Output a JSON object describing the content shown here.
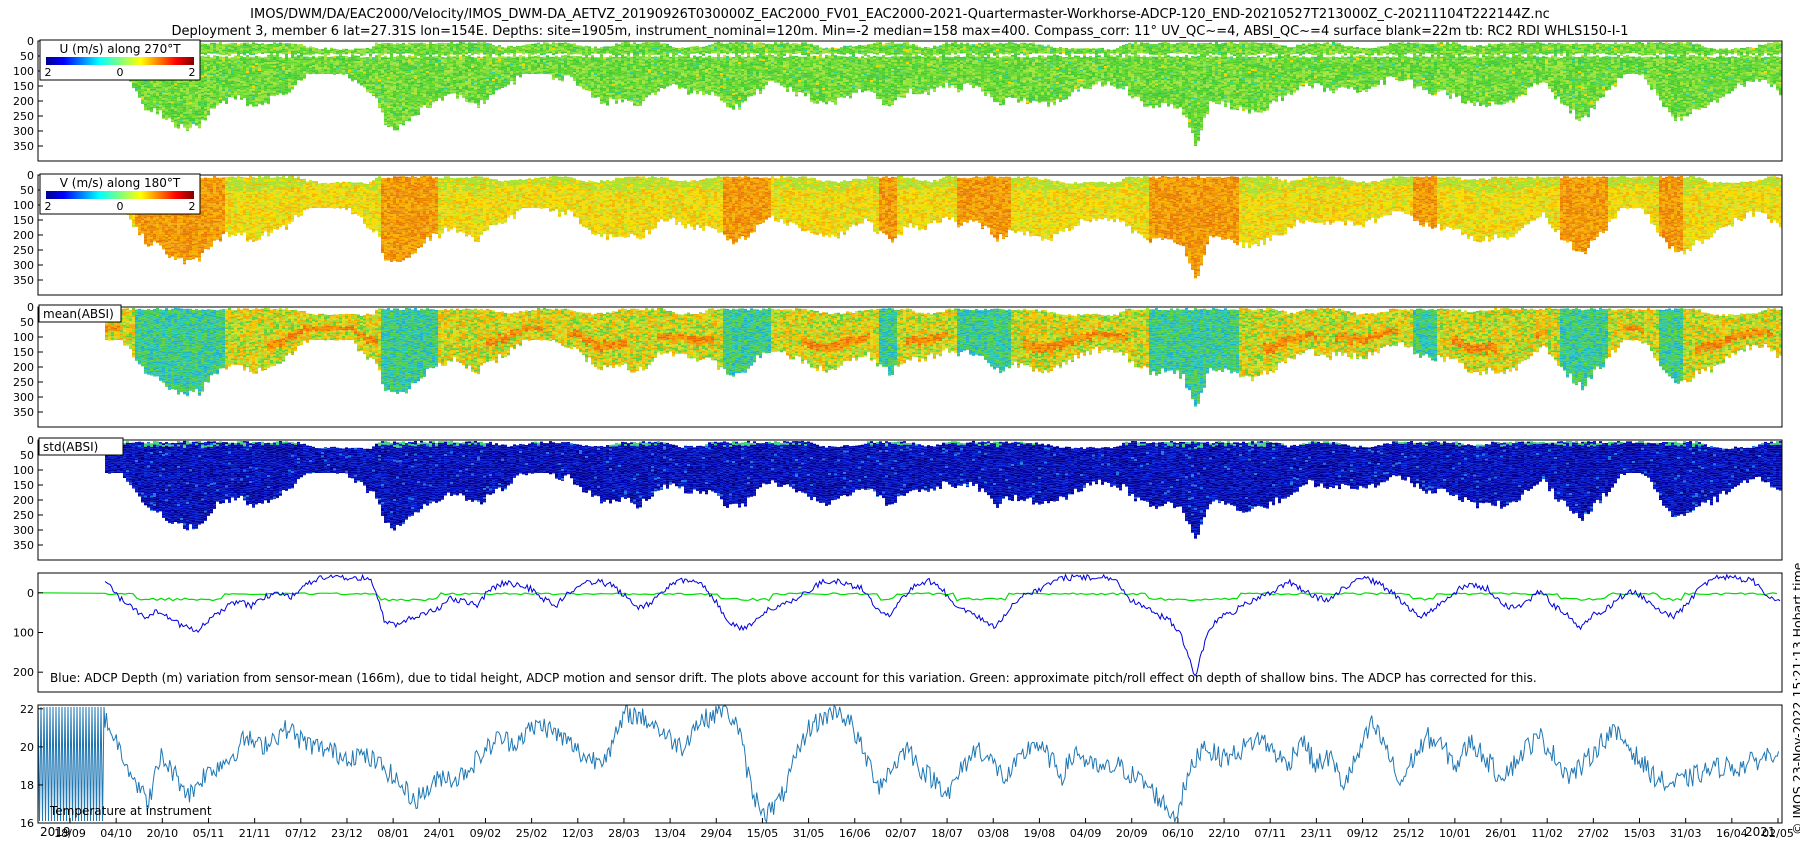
{
  "title_line1": "IMOS/DWM/DA/EAC2000/Velocity/IMOS_DWM-DA_AETVZ_20190926T030000Z_EAC2000_FV01_EAC2000-2021-Quartermaster-Workhorse-ADCP-120_END-20210527T213000Z_C-20211104T222144Z.nc",
  "title_line2": "Deployment 3, member 6 lat=27.31S lon=154E. Depths: site=1905m, instrument_nominal=120m. Min=-2 median=158 max=400. Compass_corr: 11° UV_QC~=4, ABSI_QC~=4 surface blank=22m tb: RC2 RDI WHLS150-I-1",
  "credit": "© IMOS 23-Nov-2022 15:21:13 Hobart time",
  "colors": {
    "blue_line": "#0000dd",
    "green_line": "#00dd00",
    "temp_line": "#1f77b4",
    "axis": "#000000"
  },
  "chart_data": [
    {
      "type": "heatmap",
      "panel": "u_velocity",
      "label": "U (m/s) along 270°T",
      "colorbar_ticks": [
        "2",
        "0",
        "2"
      ],
      "y_ticks": [
        "0",
        "50",
        "100",
        "150",
        "200",
        "250",
        "300",
        "350"
      ],
      "ylim": [
        0,
        400
      ],
      "colormap": "jet",
      "dominant_color": "green"
    },
    {
      "type": "heatmap",
      "panel": "v_velocity",
      "label": "V (m/s) along 180°T",
      "colorbar_ticks": [
        "2",
        "0",
        "2"
      ],
      "y_ticks": [
        "0",
        "50",
        "100",
        "150",
        "200",
        "250",
        "300",
        "350"
      ],
      "ylim": [
        0,
        400
      ],
      "colormap": "jet",
      "dominant_color": "orange-yellow"
    },
    {
      "type": "heatmap",
      "panel": "mean_absi",
      "label": "mean(ABSI)",
      "y_ticks": [
        "0",
        "50",
        "100",
        "150",
        "200",
        "250",
        "300",
        "350"
      ],
      "ylim": [
        0,
        400
      ],
      "colormap": "jet"
    },
    {
      "type": "heatmap",
      "panel": "std_absi",
      "label": "std(ABSI)",
      "y_ticks": [
        "0",
        "50",
        "100",
        "150",
        "200",
        "250",
        "300",
        "350"
      ],
      "ylim": [
        0,
        400
      ],
      "colormap": "jet",
      "dominant_color": "dark blue"
    },
    {
      "type": "line",
      "panel": "depth_variation",
      "annotation": "Blue: ADCP Depth (m) variation from sensor-mean (166m), due to tidal height, ADCP motion and sensor drift. The plots above account for this variation. Green: approximate pitch/roll effect on depth of shallow bins. The ADCP has corrected for this.",
      "y_ticks": [
        "0",
        "100",
        "200"
      ],
      "ylim": [
        -50,
        250
      ],
      "series": [
        {
          "color": "blue",
          "values": [
            -30,
            10,
            35,
            60,
            45,
            70,
            85,
            95,
            60,
            40,
            20,
            35,
            10,
            5,
            10,
            -20,
            -35,
            -38,
            -38,
            -38,
            -38,
            70,
            80,
            65,
            50,
            40,
            15,
            20,
            30,
            -10,
            -25,
            -20,
            -10,
            15,
            30,
            -5,
            -25,
            -30,
            -20,
            5,
            40,
            25,
            -5,
            -30,
            -30,
            -20,
            25,
            75,
            90,
            70,
            40,
            30,
            15,
            -5,
            -30,
            -30,
            -20,
            -10,
            35,
            60,
            15,
            -20,
            -30,
            -10,
            40,
            45,
            70,
            90,
            40,
            10,
            -5,
            -20,
            -38,
            -38,
            -38,
            -38,
            -38,
            15,
            30,
            55,
            65,
            110,
            215,
            90,
            60,
            45,
            25,
            10,
            -5,
            -30,
            -10,
            10,
            20,
            -10,
            -30,
            -35,
            -20,
            5,
            35,
            60,
            40,
            15,
            -15,
            -20,
            -10,
            25,
            40,
            20,
            -5,
            35,
            55,
            90,
            55,
            40,
            10,
            -5,
            20,
            45,
            60,
            30,
            -15,
            -38,
            -40,
            -35,
            -30,
            5,
            20
          ]
        },
        {
          "color": "green",
          "values": [
            0,
            0,
            0,
            0,
            0,
            0,
            0,
            0,
            0,
            0,
            0,
            0,
            0,
            0,
            0,
            0,
            0,
            0,
            0,
            0,
            0,
            0,
            0,
            0,
            0,
            0,
            0,
            0,
            0,
            0,
            0,
            0,
            0,
            0,
            0,
            0,
            0,
            0,
            0,
            0,
            0,
            0,
            0,
            0,
            0,
            0,
            0,
            0,
            0,
            0,
            0,
            0,
            0,
            0,
            0,
            0,
            0,
            0,
            0,
            0,
            0,
            0,
            0,
            0,
            0,
            0,
            0,
            0,
            0,
            0,
            0,
            0,
            0,
            0,
            0,
            0,
            0,
            0,
            0,
            0,
            0,
            0,
            0,
            0,
            0,
            0,
            0,
            0,
            0,
            0,
            0,
            0,
            0,
            0,
            0,
            0,
            0,
            0,
            0,
            0,
            0,
            0,
            0,
            0,
            0,
            0,
            0,
            0,
            0,
            0,
            0,
            0,
            0,
            0,
            0,
            0,
            0,
            0,
            0,
            0
          ]
        }
      ]
    },
    {
      "type": "line",
      "panel": "temperature",
      "annotation": "Temperature at instrument",
      "y_ticks": [
        "16",
        "18",
        "20",
        "22"
      ],
      "ylim": [
        16,
        22.2
      ],
      "series": [
        {
          "color": "blue",
          "values": [
            21.5,
            20.0,
            18.5,
            17.0,
            19.5,
            18.5,
            17.5,
            18.5,
            19.0,
            19.5,
            20.5,
            20.0,
            20.5,
            21.0,
            20.3,
            20.0,
            19.8,
            19.5,
            19.6,
            19.3,
            18.8,
            18.0,
            17.2,
            17.8,
            18.5,
            18.3,
            19.0,
            19.8,
            20.5,
            20.2,
            20.8,
            21.2,
            20.7,
            20.2,
            19.5,
            19.3,
            20.0,
            21.8,
            21.6,
            21.2,
            20.5,
            20.0,
            21.2,
            21.6,
            22.1,
            21.0,
            17.5,
            16.5,
            17.2,
            19.2,
            21.0,
            21.5,
            22.0,
            21.2,
            19.5,
            18.0,
            19.0,
            20.0,
            18.8,
            18.2,
            17.6,
            19.0,
            20.0,
            19.2,
            18.3,
            19.3,
            20.3,
            19.5,
            18.5,
            19.8,
            19.0,
            18.8,
            19.0,
            18.5,
            18.0,
            17.2,
            16.3,
            18.5,
            20.2,
            19.5,
            19.5,
            20.0,
            20.5,
            19.8,
            19.0,
            20.5,
            19.0,
            19.5,
            18.0,
            19.5,
            21.2,
            20.0,
            18.0,
            19.5,
            20.5,
            20.0,
            19.0,
            20.3,
            19.5,
            18.5,
            19.0,
            20.0,
            20.5,
            19.5,
            18.5,
            19.0,
            20.0,
            20.8,
            20.3,
            19.3,
            18.5,
            18.0,
            18.2,
            18.5,
            18.8,
            19.0,
            18.9,
            19.2,
            19.5,
            20.0
          ]
        }
      ]
    }
  ],
  "x_axis": {
    "ticks": [
      "18/09",
      "04/10",
      "20/10",
      "05/11",
      "21/11",
      "07/12",
      "23/12",
      "08/01",
      "24/01",
      "09/02",
      "25/02",
      "12/03",
      "28/03",
      "13/04",
      "29/04",
      "15/05",
      "31/05",
      "16/06",
      "02/07",
      "18/07",
      "03/08",
      "19/08",
      "04/09",
      "20/09",
      "06/10",
      "22/10",
      "07/11",
      "23/11",
      "09/12",
      "25/12",
      "10/01",
      "26/01",
      "11/02",
      "27/02",
      "15/03",
      "31/03",
      "16/04",
      "02/05"
    ],
    "year_start": "2019",
    "year_end": "2021"
  }
}
